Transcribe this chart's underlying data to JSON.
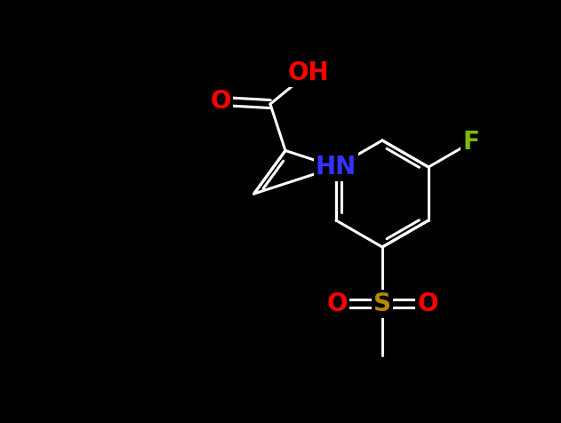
{
  "background": "#000000",
  "figsize": [
    6.31,
    4.76
  ],
  "dpi": 100,
  "lw": 2.2,
  "bond_color": "#ffffff",
  "atoms": {
    "O_carbonyl": {
      "label": "O",
      "color": "#ff0000",
      "fontsize": 20
    },
    "OH": {
      "label": "OH",
      "color": "#ff0000",
      "fontsize": 20
    },
    "HN": {
      "label": "HN",
      "color": "#3333ff",
      "fontsize": 20
    },
    "O1": {
      "label": "O",
      "color": "#ff0000",
      "fontsize": 20
    },
    "S": {
      "label": "S",
      "color": "#b8860b",
      "fontsize": 20
    },
    "O2": {
      "label": "O",
      "color": "#ff0000",
      "fontsize": 20
    },
    "F": {
      "label": "F",
      "color": "#7cbb00",
      "fontsize": 20
    }
  }
}
